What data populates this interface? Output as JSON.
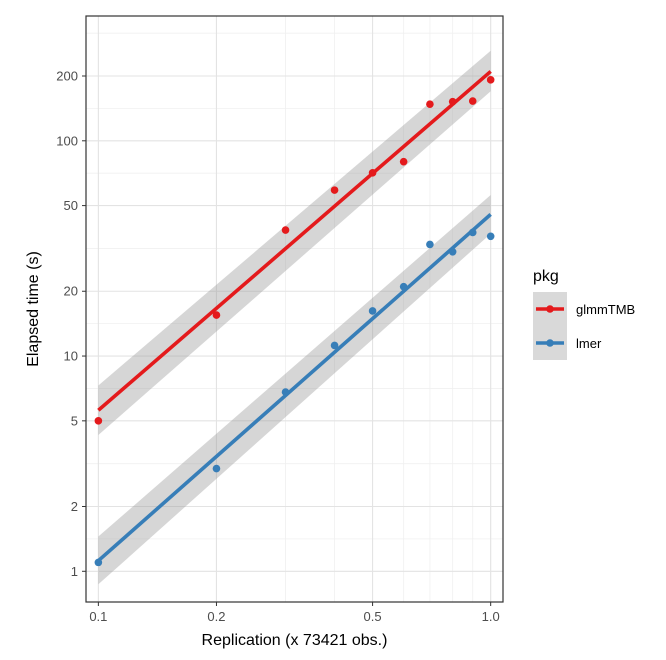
{
  "chart_data": {
    "type": "scatter",
    "xlabel": "Replication (x 73421 obs.)",
    "ylabel": "Elapsed time (s)",
    "xscale": "log",
    "yscale": "log",
    "xlim": [
      0.093,
      1.075
    ],
    "ylim": [
      0.72,
      380
    ],
    "xticks": [
      {
        "value": 0.1,
        "label": "0.1"
      },
      {
        "value": 0.2,
        "label": "0.2"
      },
      {
        "value": 0.5,
        "label": "0.5"
      },
      {
        "value": 1.0,
        "label": "1.0"
      }
    ],
    "xminor": [
      0.3,
      0.4,
      0.6,
      0.7,
      0.8,
      0.9
    ],
    "yticks": [
      {
        "value": 1,
        "label": "1"
      },
      {
        "value": 2,
        "label": "2"
      },
      {
        "value": 5,
        "label": "5"
      },
      {
        "value": 10,
        "label": "10"
      },
      {
        "value": 20,
        "label": "20"
      },
      {
        "value": 50,
        "label": "50"
      },
      {
        "value": 100,
        "label": "100"
      },
      {
        "value": 200,
        "label": "200"
      }
    ],
    "grid": true,
    "legend": {
      "title": "pkg",
      "position": "right"
    },
    "series": [
      {
        "name": "glmmTMB",
        "color": "#e41a1c",
        "x": [
          0.1,
          0.2,
          0.3,
          0.4,
          0.5,
          0.6,
          0.7,
          0.8,
          0.9,
          1.0
        ],
        "y": [
          5.0,
          15.5,
          38.5,
          59,
          71,
          80,
          148,
          152,
          153,
          192
        ],
        "fit": {
          "x": [
            0.1,
            1.0
          ],
          "y": [
            5.6,
            210
          ]
        },
        "band": {
          "x": [
            0.1,
            1.0
          ],
          "lower": [
            4.3,
            170
          ],
          "upper": [
            7.3,
            262
          ]
        }
      },
      {
        "name": "lmer",
        "color": "#377eb8",
        "x": [
          0.1,
          0.2,
          0.3,
          0.4,
          0.5,
          0.6,
          0.7,
          0.8,
          0.9,
          1.0
        ],
        "y": [
          1.1,
          3.0,
          6.8,
          11.2,
          16.2,
          21,
          33,
          30.5,
          37.5,
          36
        ],
        "fit": {
          "x": [
            0.1,
            1.0
          ],
          "y": [
            1.12,
            45.5
          ]
        },
        "band": {
          "x": [
            0.1,
            1.0
          ],
          "lower": [
            0.87,
            37
          ],
          "upper": [
            1.45,
            56
          ]
        }
      }
    ]
  }
}
